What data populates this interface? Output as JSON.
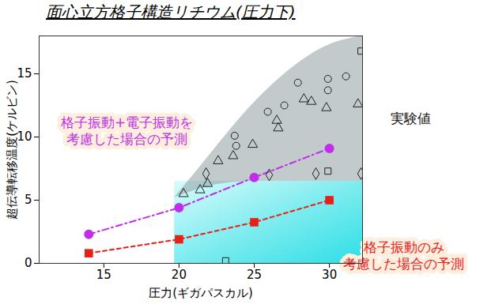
{
  "chart_data": {
    "type": "scatter",
    "title": "面心立方格子構造リチウム(圧力下)",
    "x_label": "圧力(ギガパスカル)",
    "y_label": "超伝導転移温度(ケルビン)",
    "xlim": [
      10.7,
      32.2
    ],
    "ylim": [
      0,
      18
    ],
    "xticks": [
      15,
      20,
      25,
      30
    ],
    "yticks": [
      0,
      5,
      10,
      15
    ],
    "grid": false,
    "experimental_range": {
      "x": [
        19.7,
        22,
        24,
        26,
        28,
        30,
        32.2
      ],
      "low": [
        5.2,
        6.2,
        6.5,
        6.5,
        6.5,
        6.5,
        6.5
      ],
      "high": [
        5.2,
        8.5,
        11.5,
        14,
        16,
        17.5,
        18
      ]
    },
    "series": [
      {
        "name": "格子振動+電子振動を\n考慮した場合の予測",
        "color": "#c02ee8",
        "marker": "circle",
        "line_style": "dashdot",
        "x": [
          14,
          20,
          25,
          30
        ],
        "values": [
          2.3,
          4.4,
          6.8,
          9.1
        ]
      },
      {
        "name": "格子振動のみ\n考慮した場合の予測",
        "color": "#e8201a",
        "marker": "square",
        "line_style": "dashed",
        "x": [
          14,
          20,
          25,
          30
        ],
        "values": [
          0.8,
          1.9,
          3.25,
          5.0
        ]
      },
      {
        "name": "実験値",
        "color": "#222222",
        "marker": "circle-open",
        "line_style": "none",
        "x": [
          23.7,
          23.8,
          25.9,
          27.0,
          27.9,
          29.9,
          29.9,
          31.1
        ],
        "values": [
          10.1,
          9.3,
          12.0,
          12.5,
          14.3,
          14.6,
          13.7,
          14.8
        ]
      },
      {
        "name": "実験値",
        "color": "#222222",
        "marker": "triangle-open",
        "line_style": "none",
        "x": [
          20.3,
          21.4,
          21.9,
          22.6,
          23.6,
          24.9,
          26.5,
          26.6,
          28.3,
          28.8,
          29.8,
          31.9
        ],
        "values": [
          5.5,
          5.8,
          6.3,
          8.1,
          8.5,
          9.4,
          11.3,
          10.7,
          13.0,
          12.8,
          12.3,
          12.6
        ]
      },
      {
        "name": "実験値",
        "color": "#222222",
        "marker": "diamond-open",
        "line_style": "none",
        "x": [
          21.8,
          26.0,
          29.1,
          32.1
        ],
        "values": [
          7.1,
          7.0,
          7.1,
          7.1
        ]
      },
      {
        "name": "実験値",
        "color": "#222222",
        "marker": "square-open",
        "line_style": "none",
        "x": [
          29.9,
          32.1,
          23.1
        ],
        "values": [
          7.3,
          16.8,
          0.2
        ]
      }
    ]
  }
}
